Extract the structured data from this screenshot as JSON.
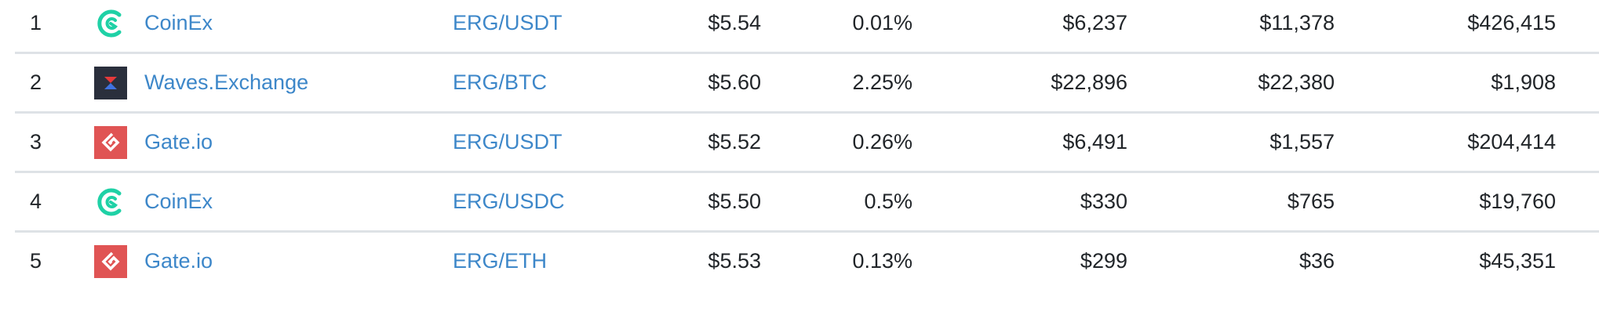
{
  "colors": {
    "link": "#3d87c9",
    "text": "#212529",
    "divider": "#dee2e6",
    "coinex": "#1fd1a6",
    "waves_bg": "#2a2f3c",
    "waves_top": "#e5393a",
    "waves_bottom": "#3f72e0",
    "gate": "#e05454"
  },
  "rows": [
    {
      "rank": "1",
      "exchange": "CoinEx",
      "icon": "coinex-logo-icon",
      "pair": "ERG/USDT",
      "price": "$5.54",
      "spread": "0.01%",
      "depth_plus": "$6,237",
      "depth_minus": "$11,378",
      "volume": "$426,415"
    },
    {
      "rank": "2",
      "exchange": "Waves.Exchange",
      "icon": "waves-exchange-logo-icon",
      "pair": "ERG/BTC",
      "price": "$5.60",
      "spread": "2.25%",
      "depth_plus": "$22,896",
      "depth_minus": "$22,380",
      "volume": "$1,908"
    },
    {
      "rank": "3",
      "exchange": "Gate.io",
      "icon": "gate-io-logo-icon",
      "pair": "ERG/USDT",
      "price": "$5.52",
      "spread": "0.26%",
      "depth_plus": "$6,491",
      "depth_minus": "$1,557",
      "volume": "$204,414"
    },
    {
      "rank": "4",
      "exchange": "CoinEx",
      "icon": "coinex-logo-icon",
      "pair": "ERG/USDC",
      "price": "$5.50",
      "spread": "0.5%",
      "depth_plus": "$330",
      "depth_minus": "$765",
      "volume": "$19,760"
    },
    {
      "rank": "5",
      "exchange": "Gate.io",
      "icon": "gate-io-logo-icon",
      "pair": "ERG/ETH",
      "price": "$5.53",
      "spread": "0.13%",
      "depth_plus": "$299",
      "depth_minus": "$36",
      "volume": "$45,351"
    }
  ]
}
